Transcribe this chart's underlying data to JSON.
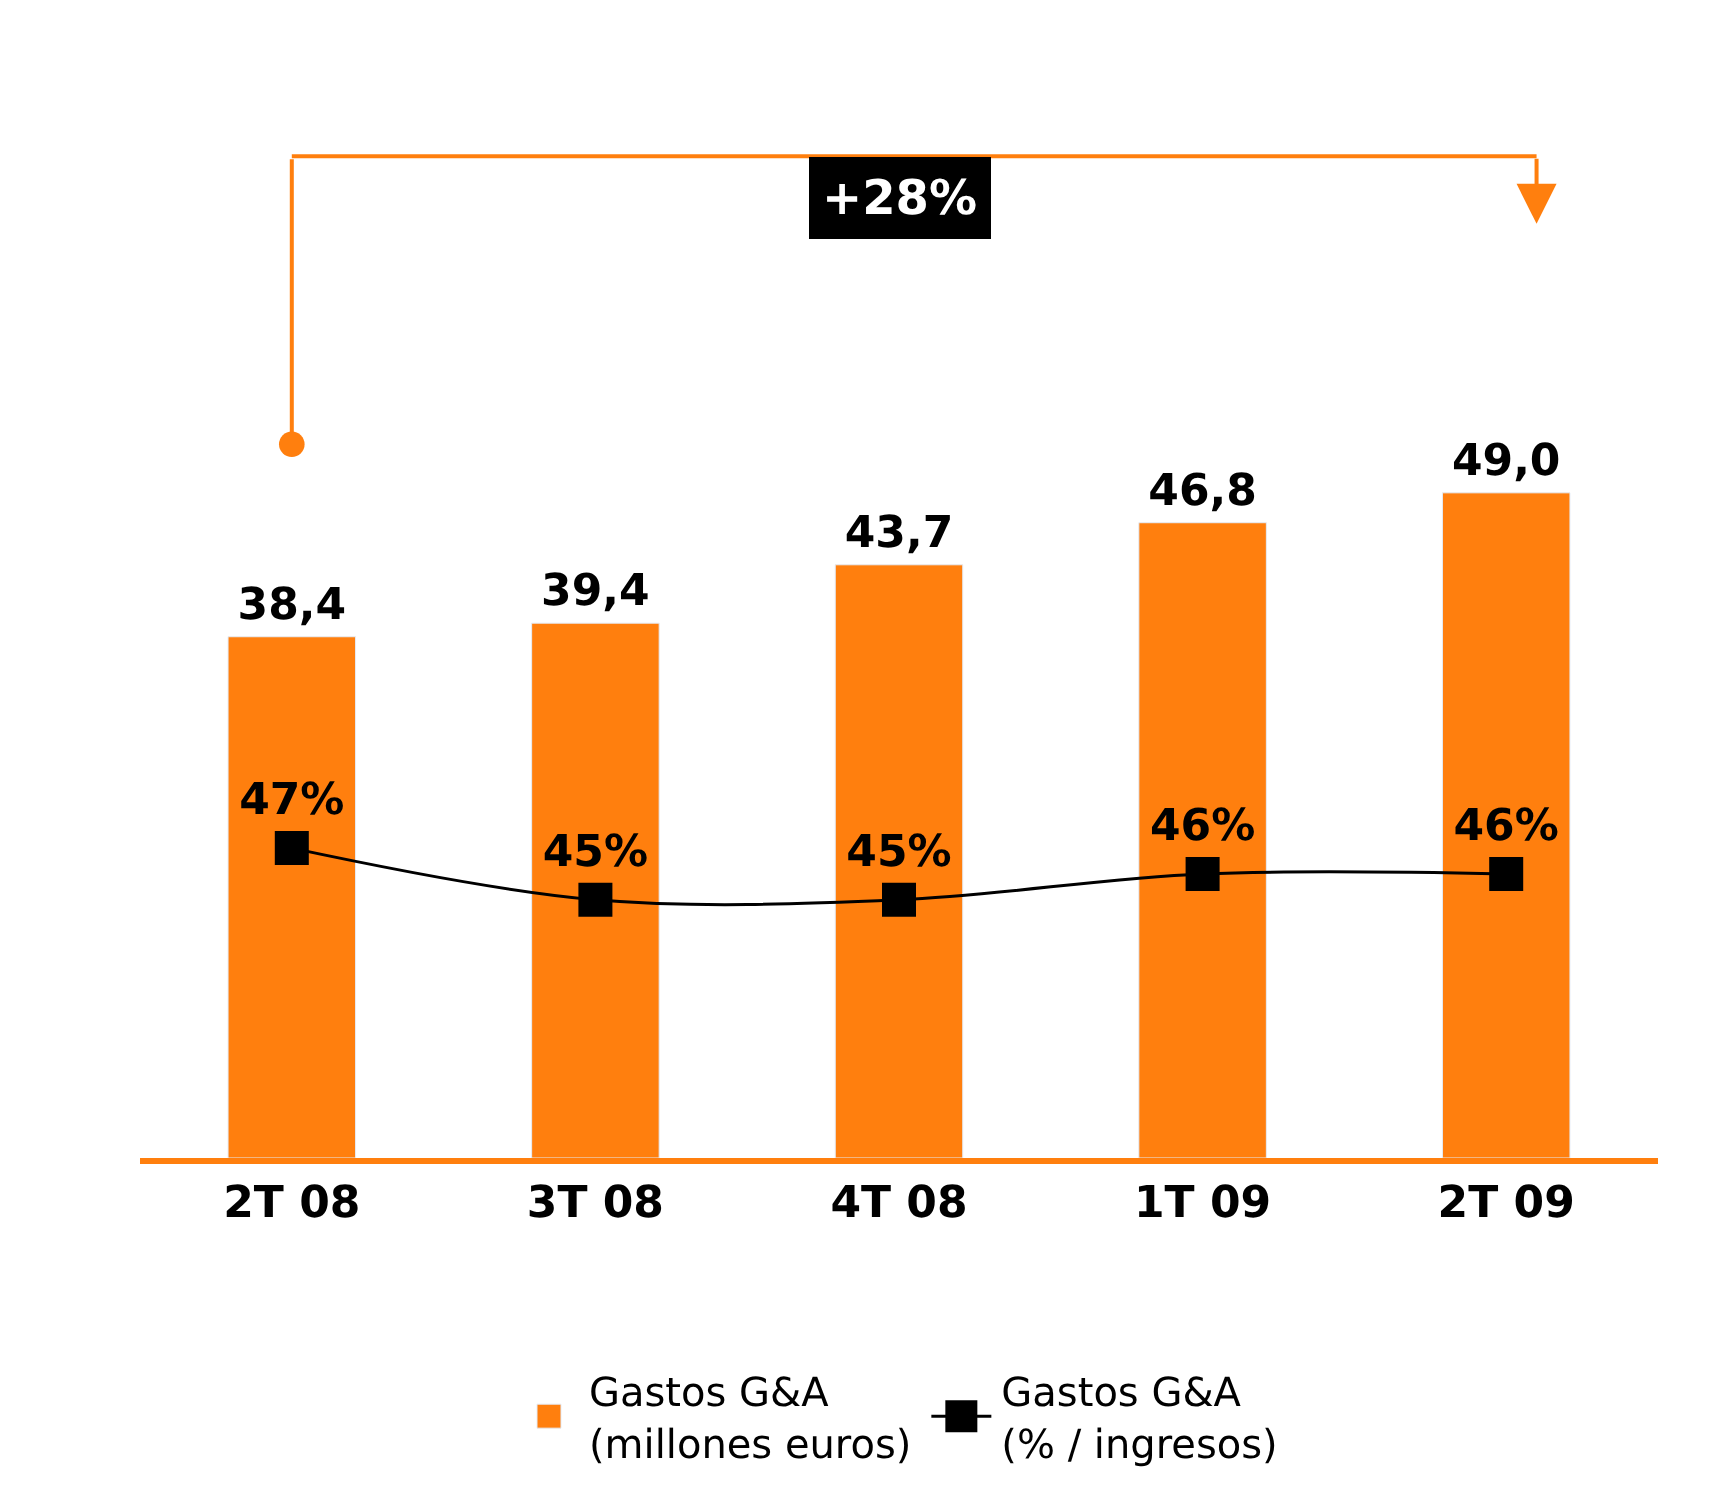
{
  "chart_data": {
    "type": "bar",
    "categories": [
      "2T 08",
      "3T 08",
      "4T 08",
      "1T 09",
      "2T 09"
    ],
    "series": [
      {
        "name": "Gastos G&A\n(millones euros)",
        "color": "#ff7f0e",
        "values": [
          38.4,
          39.4,
          43.7,
          46.8,
          49.0
        ],
        "value_labels": [
          "38,4",
          "39,4",
          "43,7",
          "46,8",
          "49,0"
        ]
      },
      {
        "name": "Gastos G&A\n(% / ingresos)",
        "type": "line",
        "axis": "y2",
        "color": "#000000",
        "marker": "square",
        "values": [
          47,
          45,
          45,
          46,
          46
        ],
        "value_labels": [
          "47%",
          "45%",
          "45%",
          "46%",
          "46%"
        ]
      }
    ],
    "annotations": [
      "+28%"
    ],
    "legend": "bottom"
  }
}
